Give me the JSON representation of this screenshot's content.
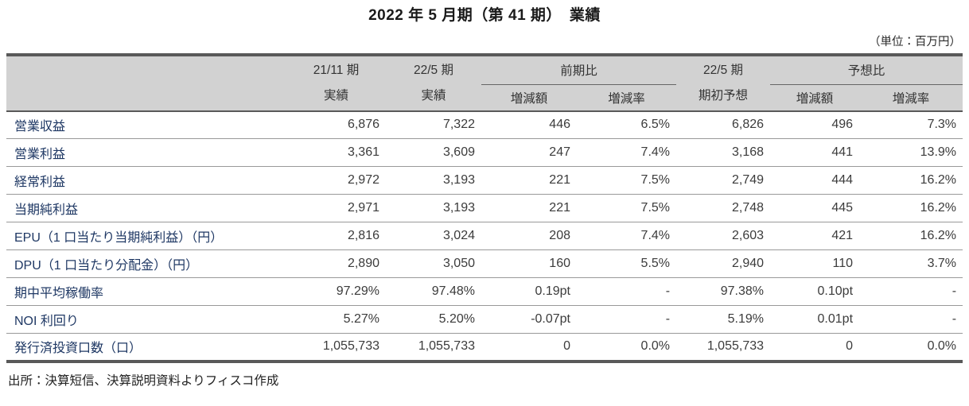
{
  "page": {
    "title": "2022 年 5 月期（第 41 期）　業績",
    "unit_note": "（単位：百万円）",
    "source_note": "出所：決算短信、決算説明資料よりフィスコ作成"
  },
  "colors": {
    "header_bg": "#d2d2d2",
    "border_dark": "#595959",
    "row_line": "#999999",
    "label_text": "#1f3864",
    "value_text": "#3b3b3b",
    "title_text": "#1a1a1a"
  },
  "table": {
    "header": {
      "prev_actual_line1": "21/11 期",
      "prev_actual_line2": "実績",
      "cur_actual_line1": "22/5 期",
      "cur_actual_line2": "実績",
      "group_prior_period": "前期比",
      "forecast_line1": "22/5 期",
      "forecast_line2": "期初予想",
      "group_vs_forecast": "予想比",
      "sub_change_amount_prior": "増減額",
      "sub_change_rate_prior": "増減率",
      "sub_change_amount_forecast": "増減額",
      "sub_change_rate_forecast": "増減率"
    },
    "rows": [
      {
        "label": "営業収益",
        "values": [
          "6,876",
          "7,322",
          "446",
          "6.5%",
          "6,826",
          "496",
          "7.3%"
        ]
      },
      {
        "label": "営業利益",
        "values": [
          "3,361",
          "3,609",
          "247",
          "7.4%",
          "3,168",
          "441",
          "13.9%"
        ]
      },
      {
        "label": "経常利益",
        "values": [
          "2,972",
          "3,193",
          "221",
          "7.5%",
          "2,749",
          "444",
          "16.2%"
        ]
      },
      {
        "label": "当期純利益",
        "values": [
          "2,971",
          "3,193",
          "221",
          "7.5%",
          "2,748",
          "445",
          "16.2%"
        ]
      },
      {
        "label": "EPU（1 口当たり当期純利益）（円）",
        "values": [
          "2,816",
          "3,024",
          "208",
          "7.4%",
          "2,603",
          "421",
          "16.2%"
        ]
      },
      {
        "label": "DPU（1 口当たり分配金）（円）",
        "values": [
          "2,890",
          "3,050",
          "160",
          "5.5%",
          "2,940",
          "110",
          "3.7%"
        ]
      },
      {
        "label": "期中平均稼働率",
        "values": [
          "97.29%",
          "97.48%",
          "0.19pt",
          "-",
          "97.38%",
          "0.10pt",
          "-"
        ]
      },
      {
        "label": "NOI 利回り",
        "values": [
          "5.27%",
          "5.20%",
          "-0.07pt",
          "-",
          "5.19%",
          "0.01pt",
          "-"
        ]
      },
      {
        "label": "発行済投資口数（口）",
        "values": [
          "1,055,733",
          "1,055,733",
          "0",
          "0.0%",
          "1,055,733",
          "0",
          "0.0%"
        ]
      }
    ]
  }
}
